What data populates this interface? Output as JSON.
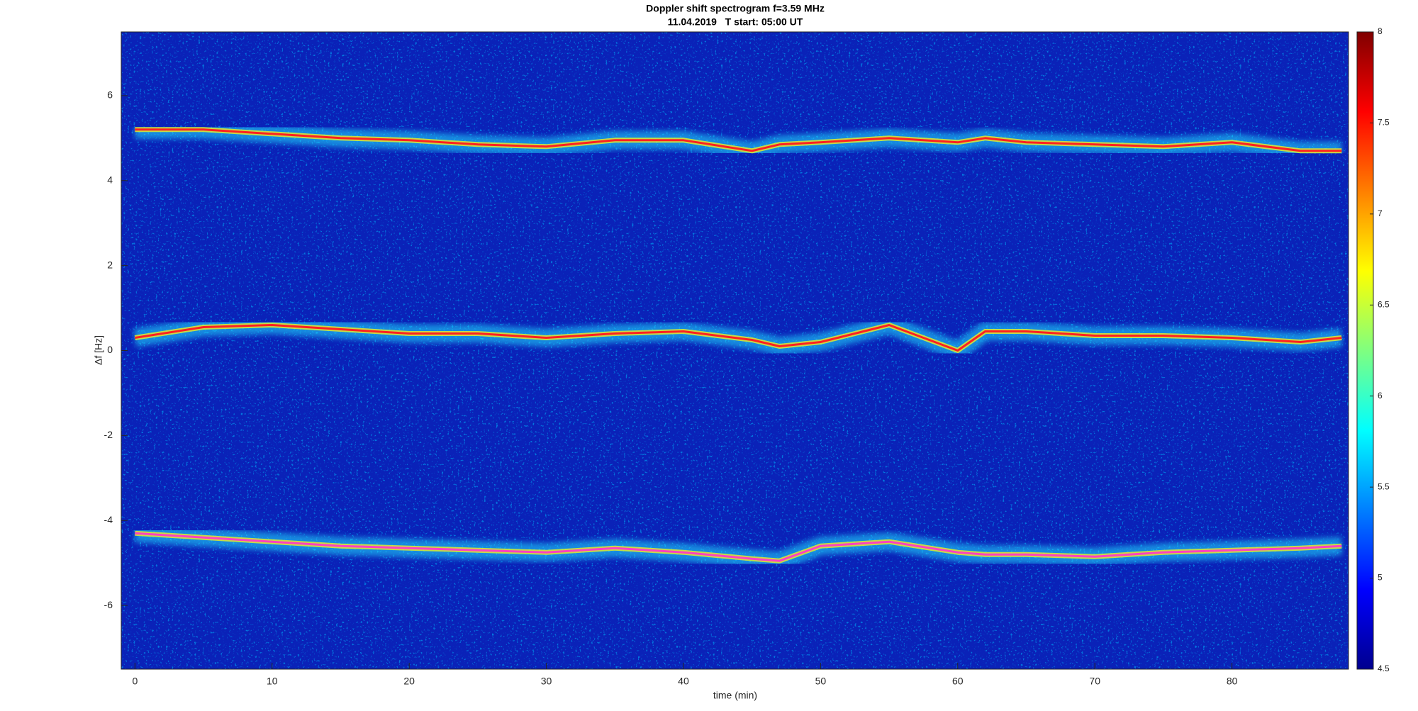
{
  "chart_data": {
    "type": "spectrogram",
    "title": "Doppler shift spectrogram f=3.59 MHz",
    "subtitle": "11.04.2019   T start: 05:00 UT",
    "x_label": "time (min)",
    "y_label": "Δf [Hz]",
    "x": [
      0,
      5,
      10,
      15,
      20,
      25,
      30,
      35,
      40,
      45,
      47,
      50,
      55,
      60,
      62,
      65,
      70,
      75,
      80,
      85,
      88
    ],
    "series": [
      {
        "color": "#ff2020",
        "values": [
          5.2,
          5.2,
          5.1,
          5.0,
          4.95,
          4.85,
          4.8,
          4.95,
          4.95,
          4.7,
          4.85,
          4.9,
          5.0,
          4.9,
          5.0,
          4.9,
          4.85,
          4.8,
          4.9,
          4.7,
          4.7
        ]
      },
      {
        "color": "#ff2020",
        "values": [
          0.3,
          0.55,
          0.6,
          0.5,
          0.4,
          0.4,
          0.3,
          0.4,
          0.45,
          0.25,
          0.1,
          0.2,
          0.6,
          0.0,
          0.45,
          0.45,
          0.35,
          0.35,
          0.3,
          0.2,
          0.3
        ]
      },
      {
        "color": "#ff40c0",
        "values": [
          -4.3,
          -4.4,
          -4.5,
          -4.6,
          -4.65,
          -4.7,
          -4.75,
          -4.65,
          -4.75,
          -4.9,
          -4.95,
          -4.6,
          -4.5,
          -4.75,
          -4.8,
          -4.8,
          -4.85,
          -4.75,
          -4.7,
          -4.65,
          -4.6
        ]
      }
    ],
    "xlim": [
      -1,
      88.5
    ],
    "xticks": [
      0,
      10,
      20,
      30,
      40,
      50,
      60,
      70,
      80
    ],
    "ylim": [
      -7.5,
      7.5
    ],
    "yticks": [
      -6,
      -4,
      -2,
      0,
      2,
      4,
      6
    ],
    "clim": [
      4.5,
      8
    ],
    "cticks": [
      4.5,
      5,
      5.5,
      6,
      6.5,
      7,
      7.5,
      8
    ],
    "colormap": "jet"
  }
}
